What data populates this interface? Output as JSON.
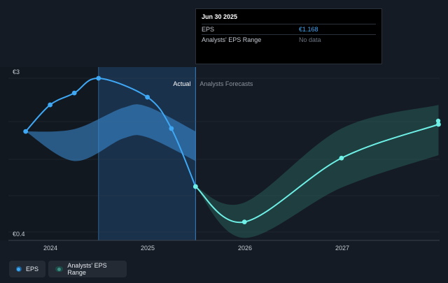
{
  "chart_data": {
    "type": "line",
    "x_ticks": [
      "2024",
      "2025",
      "2026",
      "2027"
    ],
    "y_tick_labels": [
      "€3",
      "€0.4"
    ],
    "ylim": [
      0.4,
      3
    ],
    "region_labels": {
      "actual": "Actual",
      "forecast": "Analysts Forecasts"
    },
    "series": [
      {
        "name": "EPS",
        "color": "#3fa8f4",
        "points": [
          {
            "x": "2023-09-30",
            "y": 2.1
          },
          {
            "x": "2023-12-31",
            "y": 2.55
          },
          {
            "x": "2024-03-31",
            "y": 2.75
          },
          {
            "x": "2024-06-30",
            "y": 3.0
          },
          {
            "x": "2024-12-31",
            "y": 2.68
          },
          {
            "x": "2025-03-31",
            "y": 2.15
          },
          {
            "x": "2025-06-30",
            "y": 1.168
          }
        ]
      },
      {
        "name": "EPS",
        "color": "#6ef0e6",
        "points": [
          {
            "x": "2025-06-30",
            "y": 1.168
          },
          {
            "x": "2025-12-31",
            "y": 0.57
          },
          {
            "x": "2026-12-31",
            "y": 1.65
          },
          {
            "x": "2027-12-31",
            "y": 2.22
          }
        ]
      }
    ],
    "ranges": [
      {
        "name": "Analysts' EPS Range",
        "color": "#3c8fd8",
        "upper": [
          {
            "x": "2023-09-30",
            "y": 2.1
          },
          {
            "x": "2024-03-31",
            "y": 2.14
          },
          {
            "x": "2024-09-30",
            "y": 2.5
          },
          {
            "x": "2024-12-31",
            "y": 2.52
          },
          {
            "x": "2025-06-30",
            "y": 2.1
          }
        ],
        "lower": [
          {
            "x": "2023-09-30",
            "y": 2.1
          },
          {
            "x": "2024-03-31",
            "y": 1.6
          },
          {
            "x": "2024-09-30",
            "y": 1.98
          },
          {
            "x": "2024-12-31",
            "y": 2.0
          },
          {
            "x": "2025-06-30",
            "y": 1.6
          }
        ]
      },
      {
        "name": "Analysts' EPS Range",
        "color": "#2b6a62",
        "upper": [
          {
            "x": "2025-06-30",
            "y": 1.168
          },
          {
            "x": "2025-12-31",
            "y": 0.9
          },
          {
            "x": "2026-12-31",
            "y": 2.15
          },
          {
            "x": "2027-12-31",
            "y": 2.55
          }
        ],
        "lower": [
          {
            "x": "2025-06-30",
            "y": 1.168
          },
          {
            "x": "2025-12-31",
            "y": 0.3
          },
          {
            "x": "2026-12-31",
            "y": 1.15
          },
          {
            "x": "2027-12-31",
            "y": 1.7
          }
        ]
      }
    ]
  },
  "tooltip": {
    "date": "Jun 30 2025",
    "rows": [
      {
        "label": "EPS",
        "value": "€1.168"
      },
      {
        "label": "Analysts' EPS Range",
        "value": "No data"
      }
    ]
  },
  "legend": {
    "eps_label": "EPS",
    "range_label": "Analysts' EPS Range"
  },
  "colors": {
    "background": "#151b24",
    "actual_shade": "#1c3a5a",
    "grid": "#3a424d"
  }
}
